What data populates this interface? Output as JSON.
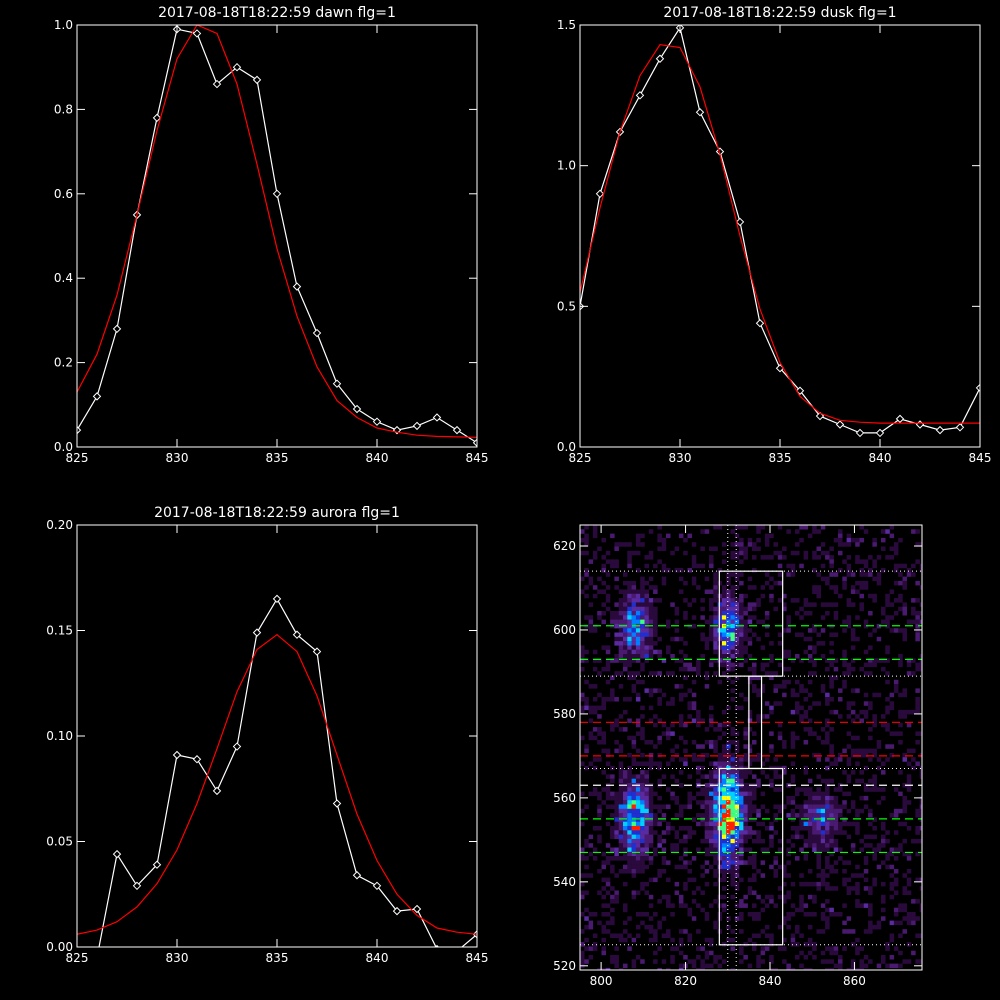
{
  "chart_data": [
    {
      "type": "line",
      "title": "2017-08-18T18:22:59 dawn flg=1",
      "xlim": [
        825,
        845
      ],
      "ylim": [
        0,
        1.0
      ],
      "xticks": [
        "825",
        "830",
        "835",
        "840",
        "845"
      ],
      "yticks": [
        "0.0",
        "0.2",
        "0.4",
        "0.6",
        "0.8",
        "1.0"
      ],
      "series": [
        {
          "style": "data-diamonds",
          "color": "#ffffff",
          "x": [
            825,
            826,
            827,
            828,
            829,
            830,
            831,
            832,
            833,
            834,
            835,
            836,
            837,
            838,
            839,
            840,
            841,
            842,
            843,
            844,
            845
          ],
          "y": [
            0.04,
            0.12,
            0.28,
            0.55,
            0.78,
            0.99,
            0.98,
            0.86,
            0.9,
            0.87,
            0.6,
            0.38,
            0.27,
            0.15,
            0.09,
            0.06,
            0.04,
            0.05,
            0.07,
            0.04,
            0.01
          ]
        },
        {
          "style": "fit",
          "color": "#ff0000",
          "x": [
            825,
            826,
            827,
            828,
            829,
            830,
            831,
            832,
            833,
            834,
            835,
            836,
            837,
            838,
            839,
            840,
            841,
            842,
            843,
            844,
            845
          ],
          "y": [
            0.13,
            0.22,
            0.36,
            0.55,
            0.75,
            0.92,
            1.0,
            0.98,
            0.86,
            0.67,
            0.47,
            0.31,
            0.19,
            0.11,
            0.07,
            0.045,
            0.035,
            0.028,
            0.025,
            0.024,
            0.023
          ]
        }
      ]
    },
    {
      "type": "line",
      "title": "2017-08-18T18:22:59 dusk flg=1",
      "xlim": [
        825,
        845
      ],
      "ylim": [
        0,
        1.5
      ],
      "xticks": [
        "825",
        "830",
        "835",
        "840",
        "845"
      ],
      "yticks": [
        "0.0",
        "0.5",
        "1.0",
        "1.5"
      ],
      "series": [
        {
          "style": "data-diamonds",
          "color": "#ffffff",
          "x": [
            825,
            826,
            827,
            828,
            829,
            830,
            831,
            832,
            833,
            834,
            835,
            836,
            837,
            838,
            839,
            840,
            841,
            842,
            843,
            844,
            845
          ],
          "y": [
            0.5,
            0.9,
            1.12,
            1.25,
            1.38,
            1.49,
            1.19,
            1.05,
            0.8,
            0.44,
            0.28,
            0.2,
            0.11,
            0.08,
            0.05,
            0.05,
            0.1,
            0.08,
            0.06,
            0.07,
            0.21
          ]
        },
        {
          "style": "fit",
          "color": "#ff0000",
          "x": [
            825,
            826,
            827,
            828,
            829,
            830,
            831,
            832,
            833,
            834,
            835,
            836,
            837,
            838,
            839,
            840,
            841,
            842,
            843,
            844,
            845
          ],
          "y": [
            0.55,
            0.85,
            1.12,
            1.32,
            1.43,
            1.42,
            1.28,
            1.04,
            0.75,
            0.49,
            0.3,
            0.18,
            0.12,
            0.095,
            0.088,
            0.085,
            0.085,
            0.085,
            0.085,
            0.085,
            0.085
          ]
        }
      ]
    },
    {
      "type": "line",
      "title": "2017-08-18T18:22:59 aurora flg=1",
      "xlim": [
        825,
        845
      ],
      "ylim": [
        0,
        0.2
      ],
      "xticks": [
        "825",
        "830",
        "835",
        "840",
        "845"
      ],
      "yticks": [
        "0.00",
        "0.05",
        "0.10",
        "0.15",
        "0.20"
      ],
      "series": [
        {
          "style": "data-diamonds",
          "color": "#ffffff",
          "x": [
            826,
            827,
            828,
            829,
            830,
            831,
            832,
            833,
            834,
            835,
            836,
            837,
            838,
            839,
            840,
            841,
            842,
            843,
            844,
            845
          ],
          "y": [
            -0.005,
            0.044,
            0.029,
            0.039,
            0.091,
            0.089,
            0.074,
            0.095,
            0.149,
            0.165,
            0.148,
            0.14,
            0.068,
            0.034,
            0.029,
            0.017,
            0.018,
            -0.001,
            -0.002,
            0.006
          ]
        },
        {
          "style": "fit",
          "color": "#ff0000",
          "x": [
            825,
            826,
            827,
            828,
            829,
            830,
            831,
            832,
            833,
            834,
            835,
            836,
            837,
            838,
            839,
            840,
            841,
            842,
            843,
            844,
            845
          ],
          "y": [
            0.006,
            0.008,
            0.012,
            0.019,
            0.03,
            0.046,
            0.068,
            0.094,
            0.121,
            0.141,
            0.148,
            0.14,
            0.119,
            0.091,
            0.063,
            0.041,
            0.025,
            0.015,
            0.009,
            0.007,
            0.006
          ]
        }
      ]
    },
    {
      "type": "heatmap",
      "title": "",
      "xlim": [
        795,
        876
      ],
      "ylim": [
        519,
        625
      ],
      "xticks": [
        "800",
        "820",
        "840",
        "860"
      ],
      "yticks": [
        "520",
        "540",
        "560",
        "580",
        "600",
        "620"
      ],
      "blobs": [
        {
          "x": 808,
          "y": 601,
          "sx": 2.5,
          "sy": 5,
          "amp": 0.55
        },
        {
          "x": 830,
          "y": 601,
          "sx": 2.2,
          "sy": 5,
          "amp": 0.6
        },
        {
          "x": 808,
          "y": 555,
          "sx": 2.5,
          "sy": 6,
          "amp": 0.65
        },
        {
          "x": 830,
          "y": 556,
          "sx": 2.5,
          "sy": 7,
          "amp": 0.95
        },
        {
          "x": 852,
          "y": 555,
          "sx": 3.0,
          "sy": 4,
          "amp": 0.4
        }
      ],
      "rectangles": [
        {
          "x0": 828,
          "x1": 843,
          "y0": 525,
          "y1": 567
        },
        {
          "x0": 828,
          "x1": 843,
          "y0": 589,
          "y1": 614
        },
        {
          "x0": 835,
          "x1": 838,
          "y0": 567,
          "y1": 589
        }
      ],
      "hlines": [
        {
          "y": 614,
          "color": "#ffffff",
          "style": "dotted"
        },
        {
          "y": 589,
          "color": "#ffffff",
          "style": "dotted"
        },
        {
          "y": 567,
          "color": "#ffffff",
          "style": "dotted"
        },
        {
          "y": 525,
          "color": "#ffffff",
          "style": "dotted"
        },
        {
          "y": 601,
          "color": "#00ff00",
          "style": "dashed"
        },
        {
          "y": 593,
          "color": "#00ff00",
          "style": "dashed"
        },
        {
          "y": 555,
          "color": "#00ff00",
          "style": "dashed"
        },
        {
          "y": 547,
          "color": "#00ff00",
          "style": "dashed"
        },
        {
          "y": 563,
          "color": "#ffffff",
          "style": "dashed"
        },
        {
          "y": 578,
          "color": "#ff0000",
          "style": "dashed"
        },
        {
          "y": 570,
          "color": "#ff0000",
          "style": "dashed"
        }
      ],
      "vlines": [
        {
          "x": 830,
          "color": "#ffffff",
          "style": "dotted"
        },
        {
          "x": 832,
          "color": "#ffffff",
          "style": "dotted"
        }
      ]
    }
  ]
}
